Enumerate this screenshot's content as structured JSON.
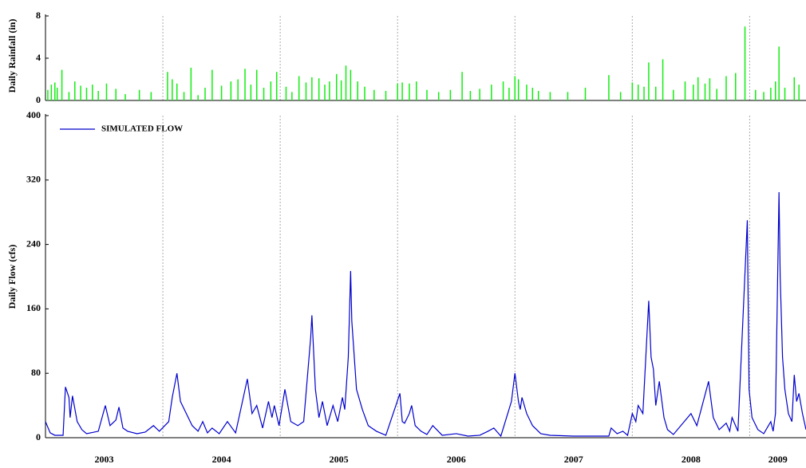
{
  "chart_data": [
    {
      "type": "bar",
      "y_label": "Daily Rainfall (in)",
      "color": "#11ee11",
      "xlim": [
        2003,
        2009.48
      ],
      "xgrid": [
        2004,
        2005,
        2006,
        2007,
        2008,
        2009
      ],
      "ylim": [
        0,
        8
      ],
      "yticks": [
        0,
        4,
        8
      ],
      "x": [
        2003.02,
        2003.05,
        2003.08,
        2003.1,
        2003.14,
        2003.2,
        2003.25,
        2003.3,
        2003.35,
        2003.4,
        2003.45,
        2003.52,
        2003.6,
        2003.68,
        2003.8,
        2003.9,
        2004.04,
        2004.08,
        2004.12,
        2004.18,
        2004.24,
        2004.3,
        2004.36,
        2004.42,
        2004.5,
        2004.58,
        2004.64,
        2004.7,
        2004.75,
        2004.8,
        2004.86,
        2004.92,
        2004.97,
        2005.05,
        2005.1,
        2005.16,
        2005.22,
        2005.27,
        2005.33,
        2005.38,
        2005.42,
        2005.48,
        2005.52,
        2005.56,
        2005.6,
        2005.66,
        2005.72,
        2005.8,
        2005.9,
        2006.0,
        2006.04,
        2006.1,
        2006.16,
        2006.25,
        2006.35,
        2006.45,
        2006.55,
        2006.62,
        2006.7,
        2006.8,
        2006.9,
        2006.95,
        2007.0,
        2007.03,
        2007.1,
        2007.15,
        2007.2,
        2007.3,
        2007.45,
        2007.6,
        2007.8,
        2007.9,
        2008.0,
        2008.05,
        2008.1,
        2008.14,
        2008.2,
        2008.26,
        2008.35,
        2008.45,
        2008.52,
        2008.56,
        2008.62,
        2008.66,
        2008.72,
        2008.8,
        2008.88,
        2008.96,
        2009.05,
        2009.12,
        2009.18,
        2009.22,
        2009.25,
        2009.3,
        2009.38,
        2009.42
      ],
      "values": [
        1.0,
        1.5,
        1.7,
        1.2,
        2.9,
        0.8,
        1.8,
        1.4,
        1.2,
        1.5,
        0.9,
        1.6,
        1.1,
        0.6,
        1.0,
        0.8,
        2.7,
        2.0,
        1.6,
        0.8,
        3.1,
        0.5,
        1.2,
        2.9,
        1.4,
        1.8,
        2.0,
        3.0,
        1.5,
        2.9,
        1.2,
        1.8,
        2.7,
        1.3,
        0.8,
        2.3,
        1.7,
        2.2,
        2.1,
        1.5,
        1.8,
        2.5,
        1.9,
        3.3,
        2.9,
        1.8,
        1.3,
        1.0,
        0.9,
        1.6,
        1.7,
        1.6,
        1.8,
        1.0,
        0.8,
        1.0,
        2.7,
        0.9,
        1.1,
        1.5,
        1.8,
        1.2,
        2.3,
        2.0,
        1.5,
        1.2,
        0.9,
        0.8,
        0.8,
        1.2,
        2.4,
        0.8,
        1.7,
        1.5,
        1.3,
        3.6,
        1.3,
        3.9,
        1.0,
        1.8,
        1.5,
        2.2,
        1.6,
        2.1,
        1.1,
        2.3,
        2.6,
        7.0,
        1.0,
        0.8,
        1.2,
        1.8,
        5.1,
        1.2,
        2.2,
        1.5
      ]
    },
    {
      "type": "line",
      "y_label": "Daily Flow (cfs)",
      "xlim": [
        2003,
        2009.48
      ],
      "xgrid": [
        2004,
        2005,
        2006,
        2007,
        2008,
        2009
      ],
      "xticks": [
        {
          "value": 2003.5,
          "label": "2003"
        },
        {
          "value": 2004.5,
          "label": "2004"
        },
        {
          "value": 2005.5,
          "label": "2005"
        },
        {
          "value": 2006.5,
          "label": "2006"
        },
        {
          "value": 2007.5,
          "label": "2007"
        },
        {
          "value": 2008.5,
          "label": "2008"
        },
        {
          "value": 2009.24,
          "label": "2009"
        }
      ],
      "ylim": [
        0,
        400
      ],
      "yticks": [
        0,
        80,
        160,
        240,
        320,
        400
      ],
      "x": [
        2003.0,
        2003.04,
        2003.08,
        2003.15,
        2003.17,
        2003.2,
        2003.21,
        2003.23,
        2003.27,
        2003.31,
        2003.35,
        2003.45,
        2003.51,
        2003.55,
        2003.6,
        2003.626,
        2003.66,
        2003.7,
        2003.78,
        2003.85,
        2003.92,
        2003.97,
        2004.05,
        2004.08,
        2004.12,
        2004.15,
        2004.2,
        2004.25,
        2004.3,
        2004.34,
        2004.38,
        2004.42,
        2004.48,
        2004.55,
        2004.62,
        2004.72,
        2004.76,
        2004.8,
        2004.85,
        2004.9,
        2004.93,
        2004.95,
        2004.99,
        2005.04,
        2005.09,
        2005.15,
        2005.2,
        2005.26,
        2005.27,
        2005.3,
        2005.33,
        2005.36,
        2005.4,
        2005.45,
        2005.49,
        2005.53,
        2005.55,
        2005.58,
        2005.6,
        2005.61,
        2005.65,
        2005.7,
        2005.75,
        2005.82,
        2005.9,
        2006.02,
        2006.04,
        2006.06,
        2006.1,
        2006.12,
        2006.15,
        2006.2,
        2006.25,
        2006.3,
        2006.38,
        2006.5,
        2006.6,
        2006.7,
        2006.77,
        2006.82,
        2006.88,
        2006.97,
        2007.0,
        2007.03,
        2007.045,
        2007.06,
        2007.1,
        2007.15,
        2007.22,
        2007.3,
        2007.5,
        2007.8,
        2007.82,
        2007.87,
        2007.92,
        2007.96,
        2008.0,
        2008.03,
        2008.05,
        2008.09,
        2008.14,
        2008.16,
        2008.18,
        2008.2,
        2008.23,
        2008.27,
        2008.3,
        2008.35,
        2008.5,
        2008.55,
        2008.65,
        2008.69,
        2008.74,
        2008.8,
        2008.83,
        2008.85,
        2008.9,
        2008.98,
        2008.995,
        2009.02,
        2009.07,
        2009.12,
        2009.18,
        2009.2,
        2009.22,
        2009.25,
        2009.26,
        2009.28,
        2009.3,
        2009.33,
        2009.36,
        2009.38,
        2009.4,
        2009.42,
        2009.45,
        2009.48
      ],
      "series": [
        {
          "name": "SIMULATED FLOW",
          "color": "#0000cc",
          "values": [
            20,
            6,
            3,
            3,
            63,
            50,
            25,
            52,
            20,
            10,
            5,
            8,
            40,
            15,
            22,
            38,
            12,
            8,
            5,
            7,
            15,
            8,
            20,
            50,
            80,
            45,
            30,
            15,
            8,
            20,
            6,
            12,
            5,
            20,
            6,
            73,
            30,
            40,
            12,
            45,
            25,
            40,
            15,
            60,
            20,
            15,
            20,
            125,
            152,
            60,
            25,
            45,
            15,
            40,
            20,
            50,
            35,
            100,
            207,
            145,
            60,
            35,
            15,
            8,
            3,
            55,
            20,
            18,
            30,
            40,
            15,
            8,
            4,
            15,
            3,
            5,
            2,
            3,
            8,
            12,
            2,
            45,
            80,
            45,
            35,
            50,
            30,
            15,
            5,
            3,
            2,
            2,
            12,
            5,
            8,
            3,
            30,
            20,
            40,
            30,
            170,
            100,
            85,
            40,
            70,
            25,
            10,
            4,
            30,
            15,
            70,
            25,
            10,
            18,
            8,
            25,
            8,
            270,
            60,
            25,
            10,
            5,
            20,
            8,
            30,
            305,
            200,
            100,
            60,
            30,
            20,
            78,
            45,
            55,
            30,
            10
          ]
        }
      ]
    }
  ]
}
